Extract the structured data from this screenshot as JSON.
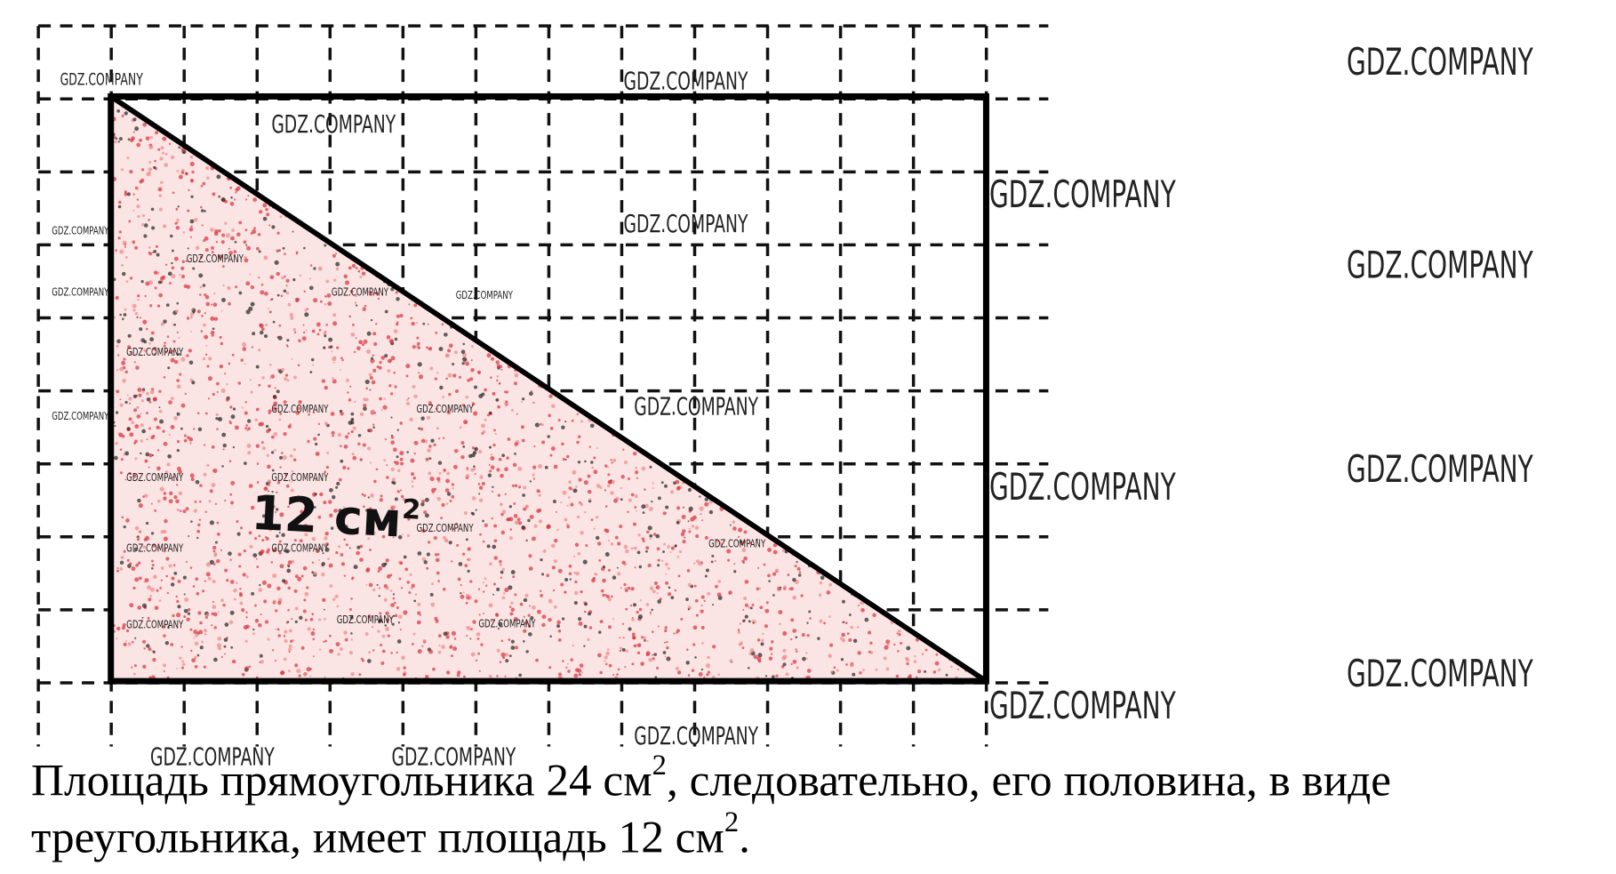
{
  "figure": {
    "label": "12 см",
    "label_sup": "2"
  },
  "text": {
    "line1": [
      "Площадь прямоугольника 24 см",
      "2",
      ", следовательно, его половина, в виде"
    ],
    "line2": [
      "треугольника, имеет площадь 12 см",
      "2",
      "."
    ]
  },
  "watermark": "GDZ.COMPANY"
}
